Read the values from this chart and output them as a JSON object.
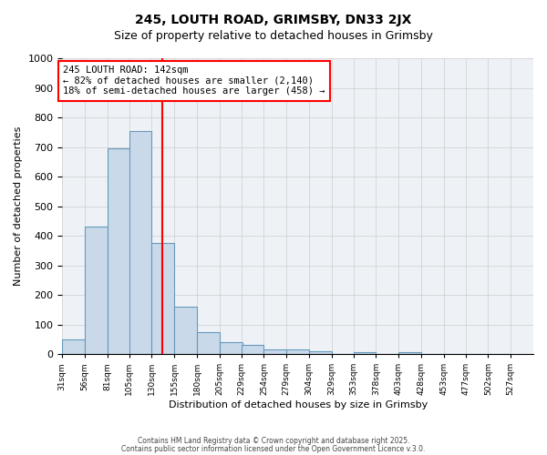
{
  "title1": "245, LOUTH ROAD, GRIMSBY, DN33 2JX",
  "title2": "Size of property relative to detached houses in Grimsby",
  "xlabel": "Distribution of detached houses by size in Grimsby",
  "ylabel": "Number of detached properties",
  "bin_labels": [
    "31sqm",
    "56sqm",
    "81sqm",
    "105sqm",
    "130sqm",
    "155sqm",
    "180sqm",
    "205sqm",
    "229sqm",
    "254sqm",
    "279sqm",
    "304sqm",
    "329sqm",
    "353sqm",
    "378sqm",
    "403sqm",
    "428sqm",
    "453sqm",
    "477sqm",
    "502sqm",
    "527sqm"
  ],
  "bin_edges": [
    31,
    56,
    81,
    105,
    130,
    155,
    180,
    205,
    229,
    254,
    279,
    304,
    329,
    353,
    378,
    403,
    428,
    453,
    477,
    502,
    527
  ],
  "bar_heights": [
    50,
    430,
    695,
    755,
    375,
    160,
    75,
    40,
    30,
    15,
    15,
    10,
    0,
    5,
    0,
    5,
    0,
    0,
    0,
    0
  ],
  "bar_color": "#c9d9ea",
  "bar_edge_color": "#6699bb",
  "grid_color": "#cccccc",
  "bg_color": "#eef2f7",
  "vline_x": 142,
  "vline_color": "red",
  "ylim": [
    0,
    1000
  ],
  "yticks": [
    0,
    100,
    200,
    300,
    400,
    500,
    600,
    700,
    800,
    900,
    1000
  ],
  "annotation_title": "245 LOUTH ROAD: 142sqm",
  "annotation_line1": "← 82% of detached houses are smaller (2,140)",
  "annotation_line2": "18% of semi-detached houses are larger (458) →",
  "footer1": "Contains HM Land Registry data © Crown copyright and database right 2025.",
  "footer2": "Contains public sector information licensed under the Open Government Licence v.3.0."
}
